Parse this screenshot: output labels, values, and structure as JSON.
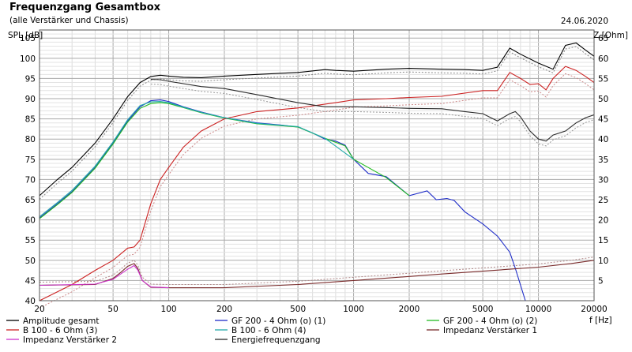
{
  "header": {
    "title": "Frequenzgang Gesamtbox",
    "subtitle": "(alle Verstärker und Chassis)",
    "date": "24.06.2020"
  },
  "chart_data": {
    "type": "line",
    "title": "Frequenzgang Gesamtbox",
    "ylabel_left": "SPL [dB]",
    "ylabel_right": "Z [Ohm]",
    "xlabel": "f [Hz]",
    "x_scale": "log",
    "xlim": [
      20,
      20000
    ],
    "ylim_left": [
      40,
      107
    ],
    "ylim_right": [
      0,
      67
    ],
    "x_ticks": [
      20,
      50,
      100,
      200,
      500,
      1000,
      2000,
      5000,
      10000,
      20000
    ],
    "x_tick_labels": [
      "20",
      "50",
      "100",
      "200",
      "500",
      "1000",
      "2000",
      "5000",
      "10000",
      "20000"
    ],
    "y_left_ticks": [
      40,
      45,
      50,
      55,
      60,
      65,
      70,
      75,
      80,
      85,
      90,
      95,
      100,
      105
    ],
    "y_right_ticks": [
      5,
      10,
      15,
      20,
      25,
      30,
      35,
      40,
      45,
      50,
      55,
      60,
      65
    ],
    "grid": true,
    "legend_position": "bottom",
    "series": [
      {
        "name": "Amplitude gesamt",
        "axis": "left",
        "color": "#000000",
        "x": [
          20,
          25,
          30,
          40,
          50,
          60,
          70,
          80,
          90,
          100,
          120,
          150,
          200,
          300,
          500,
          700,
          800,
          1000,
          1500,
          2000,
          3000,
          4000,
          5000,
          6000,
          7000,
          8000,
          10000,
          12000,
          14000,
          16000,
          18000,
          20000
        ],
        "y": [
          66,
          70,
          73,
          79,
          85,
          90.5,
          94,
          95.5,
          95.8,
          95.6,
          95.3,
          95.2,
          95.6,
          96,
          96.5,
          97.2,
          97,
          96.8,
          97.3,
          97.5,
          97.3,
          97.2,
          97,
          97.8,
          102.5,
          101,
          98.8,
          97.3,
          103.2,
          103.8,
          102,
          100.5
        ]
      },
      {
        "name": "GF 200 - 4 Ohm (o) (1)",
        "axis": "left",
        "color": "#1f2dc8",
        "x": [
          20,
          25,
          30,
          40,
          50,
          60,
          70,
          80,
          90,
          100,
          120,
          150,
          200,
          300,
          400,
          500,
          600,
          700,
          800,
          900,
          1000,
          1200,
          1500,
          2000,
          2500,
          2800,
          3200,
          3500,
          4000,
          5000,
          6000,
          7000,
          7500,
          8500
        ],
        "y": [
          60.5,
          64,
          67,
          73,
          79,
          84.5,
          88,
          89.5,
          89.7,
          89.3,
          88,
          86.7,
          85.3,
          84,
          83.5,
          83,
          81.5,
          80,
          79.5,
          78.5,
          75,
          71.5,
          70.7,
          66,
          67.2,
          65,
          65.3,
          64.8,
          62,
          59,
          56,
          52,
          48,
          40
        ]
      },
      {
        "name": "GF 200 - 4 Ohm (o) (2)",
        "axis": "left",
        "color": "#22bb22",
        "x": [
          20,
          25,
          30,
          40,
          50,
          60,
          70,
          80,
          90,
          100,
          120,
          150,
          200,
          300,
          500,
          700,
          900,
          1000,
          1500,
          2000
        ],
        "y": [
          60.3,
          63.8,
          66.8,
          72.8,
          78.8,
          84.2,
          87.6,
          88.8,
          89,
          88.8,
          87.8,
          86.5,
          85.2,
          83.8,
          83,
          80.2,
          78.3,
          75,
          70.5,
          66
        ]
      },
      {
        "name": "B 100 - 6 Ohm (3)",
        "axis": "left",
        "color": "#cc2222",
        "x": [
          20,
          30,
          40,
          50,
          60,
          65,
          70,
          80,
          90,
          100,
          120,
          150,
          200,
          300,
          500,
          800,
          1000,
          1500,
          2000,
          3000,
          5000,
          6000,
          7000,
          8000,
          9000,
          10000,
          11000,
          12000,
          14000,
          16000,
          18000,
          20000
        ],
        "y": [
          40,
          44,
          47.5,
          50,
          53,
          53.3,
          55,
          64,
          70,
          73,
          78,
          82,
          85,
          86.8,
          87.7,
          89,
          89.7,
          90,
          90.3,
          90.6,
          92,
          92,
          96.5,
          95,
          93.5,
          93.7,
          92.2,
          95,
          98,
          97,
          95.5,
          94
        ]
      },
      {
        "name": "B 100 - 6 Ohm (4)",
        "axis": "left",
        "color": "#22aaaa",
        "x": [
          20,
          25,
          30,
          40,
          50,
          60,
          70,
          80,
          90,
          100,
          120,
          150,
          200,
          300,
          500,
          700,
          1000
        ],
        "y": [
          60.8,
          64.3,
          67.3,
          73.3,
          79.3,
          84.8,
          88.3,
          89.2,
          89.3,
          89,
          87.9,
          86.6,
          85.3,
          83.9,
          83.1,
          80.2,
          75
        ]
      },
      {
        "name": "Impedanz Verstärker 1",
        "axis": "right",
        "color": "#7a2b2b",
        "x": [
          20,
          40,
          50,
          55,
          60,
          65,
          68,
          72,
          80,
          100,
          200,
          500,
          1000,
          2000,
          3000,
          5000,
          7000,
          10000,
          15000,
          20000
        ],
        "y": [
          3.8,
          4,
          5.5,
          7,
          8.5,
          9.2,
          8,
          5,
          3.3,
          3.2,
          3.2,
          4,
          5,
          6,
          6.6,
          7.3,
          7.8,
          8.3,
          9.2,
          10
        ]
      },
      {
        "name": "Impedanz Verstärker 2",
        "axis": "right",
        "color": "#cc33cc",
        "x": [
          20,
          40,
          50,
          55,
          60,
          65,
          68,
          72,
          80,
          100
        ],
        "y": [
          3.8,
          4.1,
          5.3,
          6.6,
          7.8,
          8.7,
          7.6,
          5,
          3.4,
          3.2
        ]
      },
      {
        "name": "Energiefrequenzgang",
        "axis": "left",
        "color": "#2a2a2a",
        "x": [
          80,
          90,
          100,
          150,
          200,
          300,
          500,
          700,
          1000,
          1500,
          2000,
          3000,
          4000,
          5000,
          6000,
          7000,
          7500,
          8000,
          9000,
          10000,
          11000,
          12000,
          14000,
          16000,
          18000,
          20000
        ],
        "y": [
          94.8,
          94.7,
          94.3,
          93,
          92.5,
          91,
          89,
          88,
          88,
          87.8,
          87.6,
          87.5,
          86.8,
          86.3,
          84.5,
          86.3,
          86.8,
          85.5,
          82,
          80,
          79.5,
          81,
          82,
          84,
          85.3,
          86
        ]
      }
    ],
    "legend": [
      {
        "name": "Amplitude gesamt",
        "color": "#000000"
      },
      {
        "name": "GF 200 - 4 Ohm (o) (1)",
        "color": "#1f2dc8"
      },
      {
        "name": "GF 200 - 4 Ohm (o) (2)",
        "color": "#22bb22"
      },
      {
        "name": "B 100 - 6 Ohm (3)",
        "color": "#cc2222"
      },
      {
        "name": "B 100 - 6 Ohm (4)",
        "color": "#22aaaa"
      },
      {
        "name": "Impedanz Verstärker 1",
        "color": "#7a2b2b"
      },
      {
        "name": "Impedanz Verstärker 2",
        "color": "#cc33cc"
      },
      {
        "name": "Energiefrequenzgang",
        "color": "#2a2a2a"
      }
    ]
  }
}
